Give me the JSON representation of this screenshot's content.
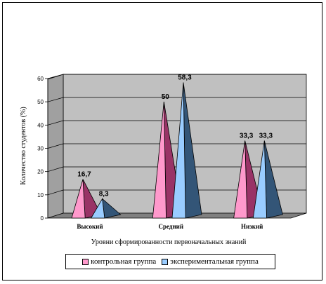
{
  "chart_data": {
    "type": "bar",
    "style": "3d-cone",
    "categories": [
      "Высокий",
      "Средний",
      "Низкий"
    ],
    "series": [
      {
        "name": "контрольная группа",
        "values": [
          16.7,
          50,
          33.3
        ],
        "labels": [
          "16,7",
          "50",
          "33,3"
        ],
        "color": "#ff99cc",
        "shade": "#993366"
      },
      {
        "name": "экспериментальная группа",
        "values": [
          8.3,
          58.3,
          33.3
        ],
        "labels": [
          "8,3",
          "58,3",
          "33,3"
        ],
        "color": "#99ccff",
        "shade": "#335577"
      }
    ],
    "xlabel": "Уровни сформированности первоначальных знаний",
    "ylabel": "Количество студентов (%)",
    "ylim": [
      0,
      60
    ],
    "yticks": [
      0,
      10,
      20,
      30,
      40,
      50,
      60
    ],
    "grid": true,
    "wall_color": "#c0c0c0",
    "legend_position": "bottom"
  }
}
